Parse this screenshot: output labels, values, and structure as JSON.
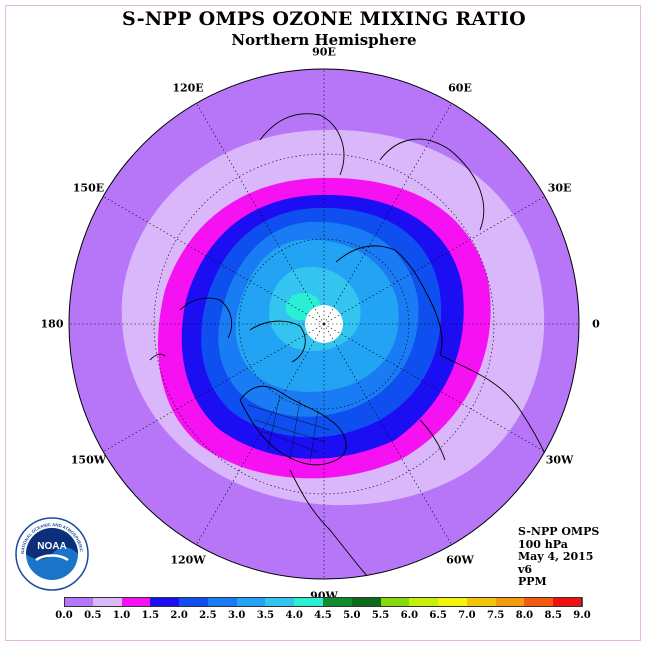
{
  "header": {
    "title": "S-NPP OMPS OZONE MIXING RATIO",
    "subtitle": "Northern Hemisphere"
  },
  "longitude_labels": [
    {
      "text": "90E",
      "angle": 90
    },
    {
      "text": "60E",
      "angle": 60
    },
    {
      "text": "30E",
      "angle": 30
    },
    {
      "text": "0",
      "angle": 0
    },
    {
      "text": "30W",
      "angle": -30
    },
    {
      "text": "60W",
      "angle": -60
    },
    {
      "text": "90W",
      "angle": -90
    },
    {
      "text": "120W",
      "angle": -120
    },
    {
      "text": "150W",
      "angle": -150
    },
    {
      "text": "180",
      "angle": 180
    },
    {
      "text": "150E",
      "angle": 150
    },
    {
      "text": "120E",
      "angle": 120
    }
  ],
  "info": {
    "lines": [
      "S-NPP OMPS",
      "100 hPa",
      "May 4, 2015",
      "v6",
      "PPM"
    ]
  },
  "logo": {
    "text": "NOAA",
    "ring_text": "NATIONAL OCEANIC AND ATMOSPHERIC ADMINISTRATION · U.S. DEPARTMENT OF COMMERCE"
  },
  "colorbar": {
    "ticks": [
      "0.0",
      "0.5",
      "1.0",
      "1.5",
      "2.0",
      "2.5",
      "3.0",
      "3.5",
      "4.0",
      "4.5",
      "5.0",
      "5.5",
      "6.0",
      "6.5",
      "7.0",
      "7.5",
      "8.0",
      "8.5",
      "9.0"
    ],
    "colors": [
      "#b776f8",
      "#dab6fb",
      "#f611f2",
      "#1b0ef2",
      "#0f4ff0",
      "#1a7cf4",
      "#22a3f4",
      "#34c4f0",
      "#2aefd4",
      "#108b2e",
      "#0d6b1d",
      "#86d80f",
      "#c8ee0e",
      "#f4f40b",
      "#f3c40c",
      "#f49a0f",
      "#f35c0f",
      "#f11010",
      "#7f4f2d"
    ]
  },
  "chart_data": {
    "type": "heatmap",
    "title": "S-NPP OMPS OZONE MIXING RATIO",
    "subtitle": "Northern Hemisphere",
    "projection": "north-polar-stereographic",
    "units": "PPM",
    "pressure_level": "100 hPa",
    "date": "May 4, 2015",
    "version": "v6",
    "scale_range": [
      0.0,
      9.0
    ],
    "contour_bands": [
      {
        "range": [
          0.0,
          0.5
        ],
        "color": "#b776f8",
        "region": "outer rim"
      },
      {
        "range": [
          0.5,
          1.0
        ],
        "color": "#dab6fb",
        "region": "mid latitudes"
      },
      {
        "range": [
          1.0,
          1.5
        ],
        "color": "#f611f2",
        "region": "outer ring of vortex"
      },
      {
        "range": [
          1.5,
          2.0
        ],
        "color": "#1b0ef2",
        "region": "ring"
      },
      {
        "range": [
          2.0,
          2.5
        ],
        "color": "#0f4ff0",
        "region": "ring"
      },
      {
        "range": [
          2.5,
          3.0
        ],
        "color": "#1a7cf4",
        "region": "high latitudes"
      },
      {
        "range": [
          3.0,
          3.5
        ],
        "color": "#22a3f4",
        "region": "polar"
      },
      {
        "range": [
          3.5,
          4.0
        ],
        "color": "#34c4f0",
        "region": "near pole"
      },
      {
        "range": [
          4.0,
          4.5
        ],
        "color": "#2aefd4",
        "region": "small patch near pole"
      }
    ],
    "no_data_region": "pole",
    "legend_placement": "bottom"
  }
}
